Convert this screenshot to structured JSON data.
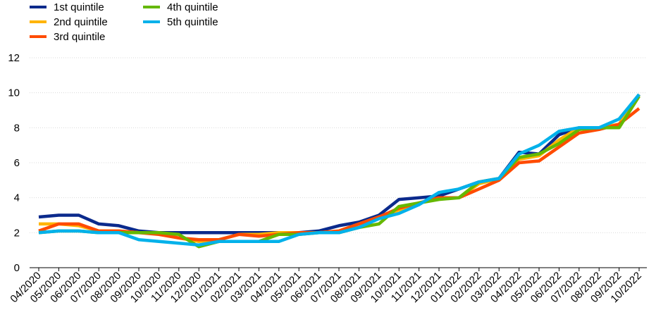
{
  "chart_data": {
    "type": "line",
    "title": "",
    "xlabel": "",
    "ylabel": "",
    "ylim": [
      0,
      12
    ],
    "yticks": [
      0,
      2,
      4,
      6,
      8,
      10,
      12
    ],
    "grid": "horizontal",
    "legend": "top-left",
    "categories": [
      "04/2020",
      "05/2020",
      "06/2020",
      "07/2020",
      "08/2020",
      "09/2020",
      "10/2020",
      "11/2020",
      "12/2020",
      "01/2021",
      "02/2021",
      "03/2021",
      "04/2021",
      "05/2021",
      "06/2021",
      "07/2021",
      "08/2021",
      "09/2021",
      "10/2021",
      "11/2021",
      "12/2021",
      "01/2022",
      "02/2022",
      "03/2022",
      "04/2022",
      "05/2022",
      "06/2022",
      "07/2022",
      "08/2022",
      "09/2022",
      "10/2022"
    ],
    "series": [
      {
        "name": "1st quintile",
        "color": "#0b2a8c",
        "values": [
          2.9,
          3.0,
          3.0,
          2.5,
          2.4,
          2.1,
          2.0,
          2.0,
          2.0,
          2.0,
          2.0,
          2.0,
          2.0,
          2.0,
          2.1,
          2.4,
          2.6,
          3.0,
          3.9,
          4.0,
          4.1,
          4.5,
          4.9,
          5.1,
          6.6,
          6.5,
          7.6,
          8.0,
          8.0,
          8.1,
          9.9
        ]
      },
      {
        "name": "2nd quintile",
        "color": "#ffb400",
        "values": [
          2.5,
          2.5,
          2.4,
          2.1,
          2.1,
          2.0,
          2.0,
          1.7,
          1.5,
          1.6,
          1.9,
          1.9,
          2.0,
          2.0,
          2.0,
          2.1,
          2.5,
          2.9,
          3.3,
          3.7,
          4.0,
          4.0,
          4.8,
          5.1,
          6.2,
          6.4,
          7.3,
          8.0,
          8.0,
          8.2,
          9.9
        ]
      },
      {
        "name": "3rd quintile",
        "color": "#ff4b00",
        "values": [
          2.1,
          2.5,
          2.5,
          2.1,
          2.1,
          2.0,
          1.9,
          1.7,
          1.6,
          1.6,
          1.9,
          1.8,
          1.9,
          2.0,
          2.0,
          2.1,
          2.5,
          2.9,
          3.4,
          3.7,
          4.0,
          4.0,
          4.5,
          5.0,
          6.0,
          6.1,
          6.9,
          7.7,
          7.9,
          8.2,
          9.1
        ]
      },
      {
        "name": "4th quintile",
        "color": "#65b800",
        "values": [
          2.0,
          2.1,
          2.1,
          2.0,
          2.0,
          2.0,
          2.0,
          1.9,
          1.2,
          1.5,
          1.5,
          1.5,
          1.9,
          1.9,
          2.0,
          2.0,
          2.3,
          2.5,
          3.5,
          3.7,
          3.9,
          4.0,
          4.9,
          5.1,
          6.3,
          6.5,
          7.1,
          7.9,
          8.0,
          8.0,
          9.8
        ]
      },
      {
        "name": "5th quintile",
        "color": "#00b1ea",
        "values": [
          2.0,
          2.1,
          2.1,
          2.0,
          2.0,
          1.6,
          1.5,
          1.4,
          1.3,
          1.5,
          1.5,
          1.5,
          1.5,
          1.9,
          2.0,
          2.0,
          2.3,
          2.8,
          3.1,
          3.6,
          4.3,
          4.5,
          4.9,
          5.1,
          6.5,
          7.0,
          7.8,
          8.0,
          8.0,
          8.5,
          9.9
        ]
      }
    ]
  }
}
